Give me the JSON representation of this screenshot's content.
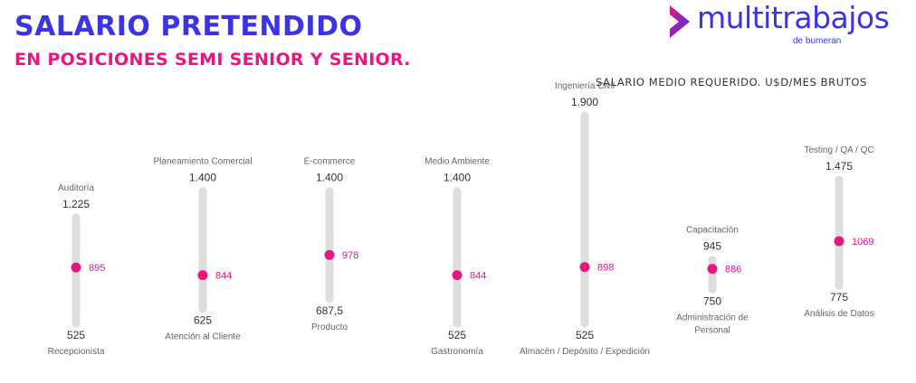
{
  "header": {
    "title": "SALARIO PRETENDIDO",
    "subtitle": "EN POSICIONES SEMI SENIOR Y SENIOR."
  },
  "logo": {
    "name": "multitrabajos",
    "sub": "de bumeran"
  },
  "colors": {
    "title": "#3b33e8",
    "accent": "#e8177f",
    "track": "#dedede",
    "text": "#333333",
    "muted": "#666666"
  },
  "chart_data": {
    "type": "range",
    "title": "SALARIO MEDIO REQUERIDO. U$D/MES BRUTOS",
    "ylim": [
      500,
      1950
    ],
    "series": [
      {
        "top_label": "Auditoría",
        "bottom_label": "Recepcionista",
        "max": 1225,
        "max_label": "1.225",
        "min": 525,
        "min_label": "525",
        "mean": 895,
        "mean_label": "895"
      },
      {
        "top_label": "Planeamiento Comercial",
        "bottom_label": "Atención al Cliente",
        "max": 1400,
        "max_label": "1.400",
        "min": 625,
        "min_label": "625",
        "mean": 844,
        "mean_label": "844"
      },
      {
        "top_label": "E-commerce",
        "bottom_label": "Producto",
        "max": 1400,
        "max_label": "1.400",
        "min": 687.5,
        "min_label": "687,5",
        "mean": 978,
        "mean_label": "978"
      },
      {
        "top_label": "Medio Ambiente",
        "bottom_label": "Gastronomía",
        "max": 1400,
        "max_label": "1.400",
        "min": 525,
        "min_label": "525",
        "mean": 844,
        "mean_label": "844"
      },
      {
        "top_label": "Ingeniería Civil",
        "bottom_label": "Almacén / Depósito / Expedición",
        "max": 1900,
        "max_label": "1.900",
        "min": 525,
        "min_label": "525",
        "mean": 898,
        "mean_label": "898"
      },
      {
        "top_label": "Capacitación",
        "bottom_label": "Administración de Personal",
        "max": 945,
        "max_label": "945",
        "min": 750,
        "min_label": "750",
        "mean": 886,
        "mean_label": "886"
      },
      {
        "top_label": "Testing / QA / QC",
        "bottom_label": "Análisis de Datos",
        "max": 1475,
        "max_label": "1.475",
        "min": 775,
        "min_label": "775",
        "mean": 1069,
        "mean_label": "1069"
      }
    ]
  }
}
